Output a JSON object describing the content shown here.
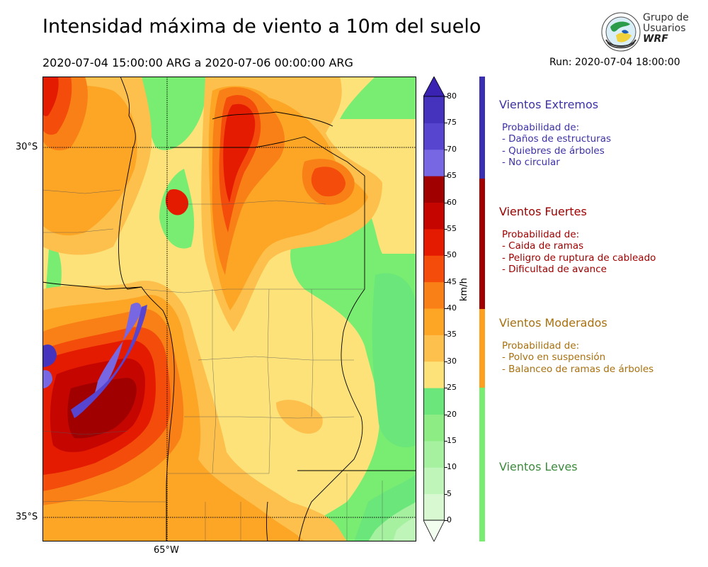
{
  "header": {
    "title": "Intensidad máxima de viento a 10m del suelo",
    "period": "2020-07-04 15:00:00 ARG  a  2020-07-06 00:00:00 ARG",
    "run": "Run: 2020-07-04 18:00:00"
  },
  "logo": {
    "line1": "Grupo de",
    "line2": "Usuarios",
    "line3": "WRF"
  },
  "map": {
    "lat_labels": [
      "30°S",
      "35°S"
    ],
    "lon_labels": [
      "65°W"
    ]
  },
  "colorbar": {
    "unit": "km/h",
    "ticks": [
      "0",
      "5",
      "10",
      "15",
      "20",
      "25",
      "30",
      "35",
      "40",
      "45",
      "50",
      "55",
      "60",
      "65",
      "70",
      "75",
      "80"
    ],
    "colors": [
      "#f2fdf0",
      "#d8f8d2",
      "#bff5b8",
      "#a5f1a0",
      "#8eec85",
      "#6be67a",
      "#fde27a",
      "#fdc04c",
      "#fda525",
      "#f97f17",
      "#f34c0b",
      "#e41b00",
      "#c50600",
      "#a00000",
      "#7867e3",
      "#5845cf",
      "#4633bd",
      "#3a22b3"
    ]
  },
  "categories": [
    {
      "title": "Vientos Extremos",
      "color": "#3c31a6",
      "desc": [
        "Probabilidad de:",
        "- Daños de estructuras",
        "- Quiebres de árboles",
        "- No circular"
      ]
    },
    {
      "title": "Vientos Fuertes",
      "color": "#a00000",
      "desc": [
        "Probabilidad de:",
        "- Caida de ramas",
        "- Peligro de ruptura de cableado",
        "- Dificultad de avance"
      ]
    },
    {
      "title": "Vientos Moderados",
      "color": "#a8700e",
      "desc": [
        "Probabilidad de:",
        "- Polvo en suspensión",
        "- Balanceo de ramas de árboles"
      ]
    },
    {
      "title": "Vientos Leves",
      "color": "#3b8a3b",
      "desc": []
    }
  ],
  "category_bar_colors": [
    "#3a2fb0",
    "#a00000",
    "#fda020",
    "#78ed72"
  ]
}
